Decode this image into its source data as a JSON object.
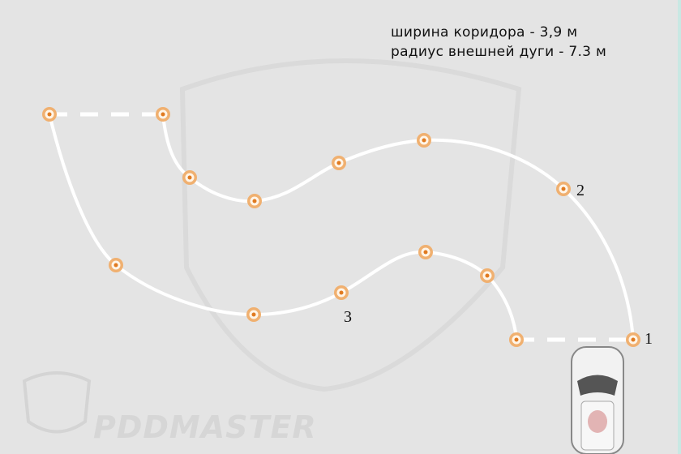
{
  "annotations": {
    "corridor_width": "ширина коридора - 3,9 м",
    "outer_arc_radius": "радиус внешней дуги - 7.3 м"
  },
  "markers": [
    "1",
    "2",
    "3"
  ],
  "watermark": "PDDMASTER",
  "colors": {
    "background": "#e4e4e4",
    "track": "#ffffff",
    "cone": "#f0b070",
    "cone_center": "#e07a20",
    "frame": "#c9e8e3"
  }
}
